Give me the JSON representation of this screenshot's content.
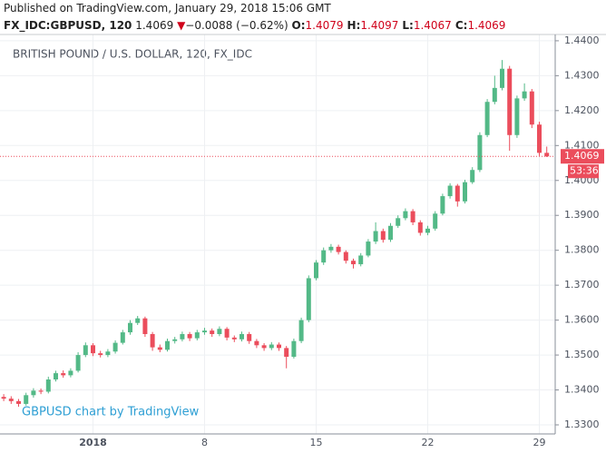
{
  "header": {
    "published": "Published on TradingView.com, January 29, 2018 15:06 GMT",
    "symbol": "FX_IDC:GBPUSD, 120",
    "price": "1.4069",
    "arrow": "▼",
    "change": "−0.0088 (−0.62%)",
    "ohlc": [
      {
        "label": "O:",
        "value": "1.4079"
      },
      {
        "label": "H:",
        "value": "1.4097"
      },
      {
        "label": "L:",
        "value": "1.4067"
      },
      {
        "label": "C:",
        "value": "1.4069"
      }
    ]
  },
  "chart_data": {
    "type": "candlestick",
    "title": "BRITISH POUND / U.S. DOLLAR, 120, FX_IDC",
    "watermark": "GBPUSD chart by TradingView",
    "categories": [
      null,
      null,
      null,
      null,
      null,
      null,
      null,
      null,
      null,
      null,
      null,
      null,
      "2018",
      null,
      null,
      null,
      null,
      null,
      null,
      null,
      null,
      null,
      null,
      null,
      null,
      null,
      null,
      "8",
      null,
      null,
      null,
      null,
      null,
      null,
      null,
      null,
      null,
      null,
      null,
      null,
      null,
      null,
      "15",
      null,
      null,
      null,
      null,
      null,
      null,
      null,
      null,
      null,
      null,
      null,
      null,
      null,
      null,
      "22",
      null,
      null,
      null,
      null,
      null,
      null,
      null,
      null,
      null,
      null,
      null,
      null,
      null,
      null,
      "29",
      null
    ],
    "open": [
      1.338,
      1.3375,
      1.3368,
      1.336,
      1.3385,
      1.3398,
      1.3395,
      1.343,
      1.3448,
      1.3442,
      1.3455,
      1.35,
      1.3528,
      1.3505,
      1.35,
      1.351,
      1.3535,
      1.3565,
      1.3592,
      1.3605,
      1.356,
      1.3522,
      1.3515,
      1.354,
      1.3545,
      1.356,
      1.3548,
      1.3565,
      1.357,
      1.356,
      1.3575,
      1.355,
      1.3545,
      1.356,
      1.354,
      1.3528,
      1.352,
      1.353,
      1.352,
      1.3495,
      1.354,
      1.36,
      1.372,
      1.3765,
      1.38,
      1.381,
      1.3795,
      1.377,
      1.376,
      1.3785,
      1.3825,
      1.3855,
      1.383,
      1.387,
      1.3892,
      1.3912,
      1.388,
      1.385,
      1.3862,
      1.3905,
      1.3955,
      1.3985,
      1.394,
      1.3995,
      1.403,
      1.413,
      1.4225,
      1.4265,
      1.432,
      1.413,
      1.4235,
      1.4255,
      1.416,
      1.4079
    ],
    "high": [
      1.3388,
      1.3382,
      1.3374,
      1.3392,
      1.3405,
      1.3404,
      1.3438,
      1.3455,
      1.3456,
      1.3462,
      1.3508,
      1.3536,
      1.3534,
      1.3512,
      1.3517,
      1.3542,
      1.3572,
      1.36,
      1.3612,
      1.361,
      1.3566,
      1.353,
      1.3547,
      1.3552,
      1.3567,
      1.3566,
      1.3572,
      1.3578,
      1.3576,
      1.3582,
      1.358,
      1.3556,
      1.3567,
      1.3566,
      1.3546,
      1.3534,
      1.3537,
      1.3536,
      1.3526,
      1.3547,
      1.3607,
      1.3728,
      1.3772,
      1.3808,
      1.3818,
      1.3816,
      1.38,
      1.3776,
      1.3792,
      1.3832,
      1.388,
      1.3862,
      1.3878,
      1.39,
      1.392,
      1.3918,
      1.3886,
      1.387,
      1.3912,
      1.3962,
      1.3992,
      1.399,
      1.4002,
      1.4038,
      1.4138,
      1.4233,
      1.43,
      1.4345,
      1.4328,
      1.4243,
      1.4278,
      1.4262,
      1.4168,
      1.4097
    ],
    "low": [
      1.3368,
      1.336,
      1.3352,
      1.3355,
      1.3378,
      1.3388,
      1.339,
      1.3424,
      1.3435,
      1.3436,
      1.345,
      1.3494,
      1.3497,
      1.3493,
      1.3494,
      1.3504,
      1.353,
      1.3558,
      1.3586,
      1.3552,
      1.3512,
      1.3508,
      1.351,
      1.3533,
      1.3539,
      1.354,
      1.3542,
      1.3558,
      1.3552,
      1.3554,
      1.3542,
      1.3537,
      1.3539,
      1.3532,
      1.352,
      1.3512,
      1.3514,
      1.3512,
      1.3462,
      1.349,
      1.3534,
      1.3594,
      1.3714,
      1.3758,
      1.3793,
      1.3788,
      1.3762,
      1.3748,
      1.3754,
      1.378,
      1.3818,
      1.3822,
      1.3824,
      1.3864,
      1.3886,
      1.3872,
      1.3842,
      1.3843,
      1.3856,
      1.39,
      1.3948,
      1.3925,
      1.3934,
      1.399,
      1.4024,
      1.4124,
      1.4218,
      1.4258,
      1.4085,
      1.4122,
      1.4228,
      1.415,
      1.407,
      1.4067
    ],
    "close": [
      1.3375,
      1.3368,
      1.336,
      1.3385,
      1.3398,
      1.3395,
      1.343,
      1.3448,
      1.3442,
      1.3455,
      1.35,
      1.3528,
      1.3505,
      1.35,
      1.351,
      1.3535,
      1.3565,
      1.3592,
      1.3605,
      1.356,
      1.3522,
      1.3515,
      1.354,
      1.3545,
      1.356,
      1.3548,
      1.3565,
      1.357,
      1.356,
      1.3575,
      1.355,
      1.3545,
      1.356,
      1.354,
      1.3528,
      1.352,
      1.353,
      1.352,
      1.3495,
      1.354,
      1.36,
      1.372,
      1.3765,
      1.38,
      1.381,
      1.3795,
      1.377,
      1.376,
      1.3785,
      1.3825,
      1.3855,
      1.383,
      1.387,
      1.3892,
      1.3912,
      1.388,
      1.385,
      1.3862,
      1.3905,
      1.3955,
      1.3985,
      1.394,
      1.3995,
      1.403,
      1.413,
      1.4225,
      1.4265,
      1.432,
      1.413,
      1.4235,
      1.4255,
      1.416,
      1.4079,
      1.4069
    ],
    "up_color": "#53b987",
    "down_color": "#eb4d5c",
    "ylim": [
      1.3274,
      1.4418
    ],
    "yticks": [
      {
        "value": 1.33,
        "label": "1.3300"
      },
      {
        "value": 1.34,
        "label": "1.3400"
      },
      {
        "value": 1.35,
        "label": "1.3500"
      },
      {
        "value": 1.36,
        "label": "1.3600"
      },
      {
        "value": 1.37,
        "label": "1.3700"
      },
      {
        "value": 1.38,
        "label": "1.3800"
      },
      {
        "value": 1.39,
        "label": "1.3900"
      },
      {
        "value": 1.4,
        "label": "1.4000"
      },
      {
        "value": 1.41,
        "label": "1.4100"
      },
      {
        "value": 1.42,
        "label": "1.4200"
      },
      {
        "value": 1.43,
        "label": "1.4300"
      },
      {
        "value": 1.44,
        "label": "1.4400"
      }
    ],
    "grid": true,
    "last_price": 1.4069,
    "countdown": "53:36"
  }
}
